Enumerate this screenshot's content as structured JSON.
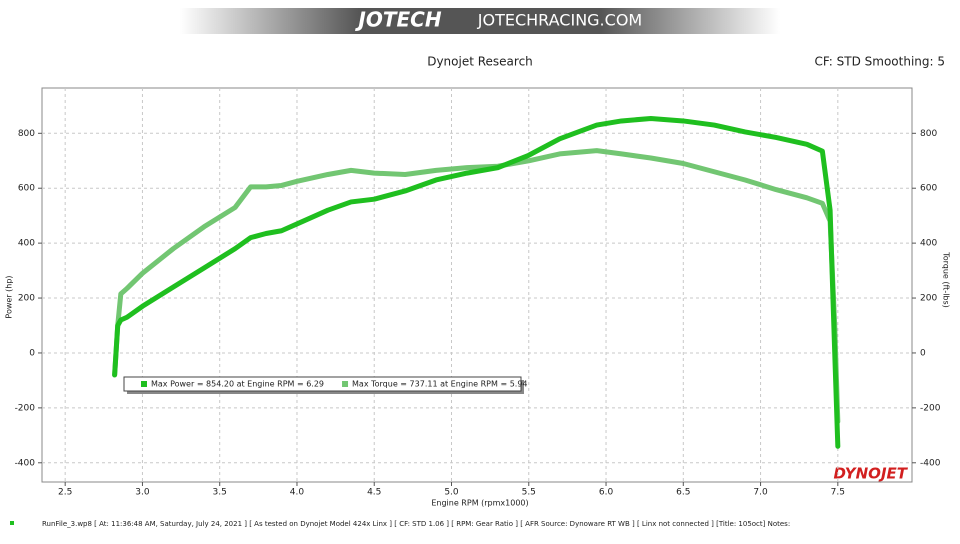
{
  "header": {
    "logo": "JOTECH",
    "site": "JOTECHRACING.COM"
  },
  "chart_data": {
    "type": "line",
    "title": "Dynojet Research",
    "subtitle": "CF: STD Smoothing: 5",
    "x_label": "Engine RPM (rpmx1000)",
    "y_label": "Power (hp)",
    "y2_label": "Torque (ft-lbs)",
    "brand": "DYNOJET",
    "footer": "RunFile_3.wp8 [ At: 11:36:48 AM, Saturday, July 24, 2021 ] [ As tested on Dynojet Model 424x Linx ] [ CF: STD 1.06 ] [ RPM: Gear Ratio ] [ AFR Source: Dynoware RT WB ] [ Linx not connected ] [Title: 105oct]  Notes:",
    "x": [
      2.82,
      2.84,
      2.86,
      2.9,
      3.0,
      3.2,
      3.4,
      3.6,
      3.7,
      3.8,
      3.9,
      4.0,
      4.2,
      4.35,
      4.5,
      4.7,
      4.9,
      5.1,
      5.3,
      5.5,
      5.7,
      5.94,
      6.1,
      6.29,
      6.5,
      6.7,
      6.9,
      7.1,
      7.3,
      7.4,
      7.45,
      7.48,
      7.5
    ],
    "series": [
      {
        "name": "Max Power = 854.20 at Engine RPM = 6.29",
        "color": "#1fbf1f",
        "values": [
          -80,
          100,
          120,
          130,
          170,
          240,
          310,
          380,
          420,
          435,
          445,
          470,
          520,
          550,
          560,
          590,
          630,
          655,
          675,
          720,
          780,
          830,
          845,
          854,
          845,
          830,
          805,
          785,
          760,
          735,
          520,
          0,
          -340
        ]
      },
      {
        "name": "Max Torque = 737.11 at Engine RPM = 5.94",
        "color": "#72c672",
        "axis": "y2",
        "values": [
          -80,
          100,
          215,
          235,
          290,
          380,
          460,
          530,
          605,
          605,
          610,
          625,
          650,
          665,
          655,
          650,
          665,
          675,
          680,
          700,
          725,
          737,
          725,
          710,
          690,
          660,
          630,
          595,
          565,
          545,
          480,
          100,
          -250
        ]
      }
    ],
    "xlim": [
      2.35,
      7.98
    ],
    "xticks": [
      2.5,
      {
        "value": 3,
        "label": "3.0"
      },
      3.5,
      {
        "value": 4,
        "label": "4.0"
      },
      4.5,
      {
        "value": 5,
        "label": "5.0"
      },
      5.5,
      {
        "value": 6,
        "label": "6.0"
      },
      6.5,
      {
        "value": 7,
        "label": "7.0"
      },
      7.5
    ],
    "ylim": [
      -470,
      965
    ],
    "yticks": [
      -400,
      -200,
      0,
      200,
      400,
      600,
      800
    ],
    "y2lim": [
      -470,
      965
    ],
    "y2ticks": [
      -400,
      -200,
      0,
      200,
      400,
      600,
      800
    ],
    "grid": true
  }
}
